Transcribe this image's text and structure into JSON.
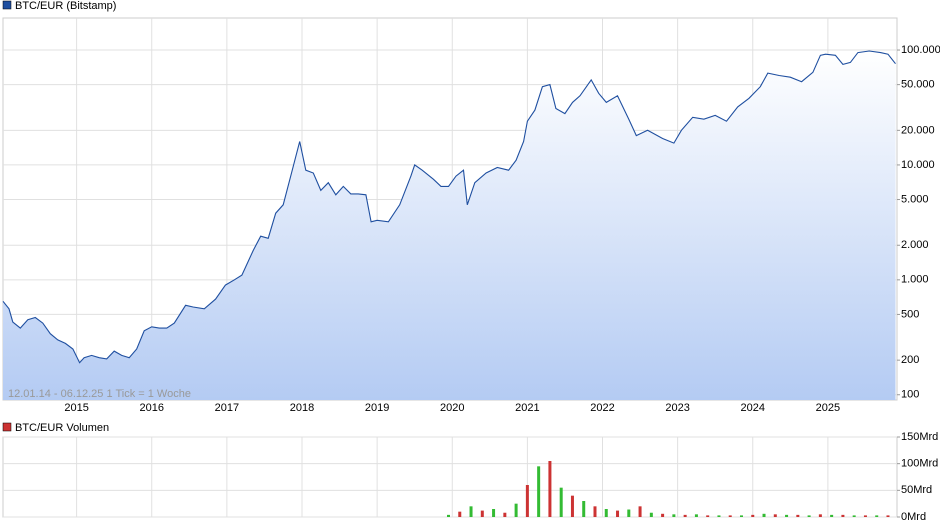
{
  "chart_data": [
    {
      "type": "line",
      "title": "BTC/EUR (Bitstamp)",
      "annotation": "12.01.14 - 06.12.25   1 Tick = 1 Woche",
      "color": "#1f4fa0",
      "log_scale": true,
      "grid": true,
      "xlim": [
        2014.02,
        2025.92
      ],
      "xticks": [
        2015,
        2016,
        2017,
        2018,
        2019,
        2020,
        2021,
        2022,
        2023,
        2024,
        2025
      ],
      "ylim": [
        90,
        190000
      ],
      "yticks": [
        100,
        200,
        500,
        {
          "value": 1000,
          "label": "1.000"
        },
        {
          "value": 2000,
          "label": "2.000"
        },
        {
          "value": 5000,
          "label": "5.000"
        },
        {
          "value": 10000,
          "label": "10.000"
        },
        {
          "value": 20000,
          "label": "20.000"
        },
        {
          "value": 50000,
          "label": "50.000"
        },
        {
          "value": 100000,
          "label": "100.000"
        }
      ],
      "x": [
        2014.02,
        2014.1,
        2014.15,
        2014.25,
        2014.35,
        2014.45,
        2014.55,
        2014.65,
        2014.75,
        2014.85,
        2014.95,
        2015.04,
        2015.1,
        2015.2,
        2015.3,
        2015.4,
        2015.5,
        2015.6,
        2015.7,
        2015.8,
        2015.9,
        2016.0,
        2016.1,
        2016.2,
        2016.3,
        2016.45,
        2016.55,
        2016.7,
        2016.85,
        2016.98,
        2017.1,
        2017.2,
        2017.35,
        2017.45,
        2017.55,
        2017.65,
        2017.75,
        2017.85,
        2017.97,
        2018.05,
        2018.15,
        2018.25,
        2018.35,
        2018.45,
        2018.55,
        2018.65,
        2018.75,
        2018.85,
        2018.92,
        2019.0,
        2019.15,
        2019.3,
        2019.45,
        2019.5,
        2019.6,
        2019.75,
        2019.85,
        2019.95,
        2020.05,
        2020.15,
        2020.2,
        2020.3,
        2020.45,
        2020.6,
        2020.75,
        2020.85,
        2020.95,
        2021.0,
        2021.1,
        2021.2,
        2021.3,
        2021.38,
        2021.5,
        2021.6,
        2021.7,
        2021.85,
        2021.95,
        2022.05,
        2022.2,
        2022.35,
        2022.45,
        2022.6,
        2022.8,
        2022.95,
        2023.05,
        2023.2,
        2023.35,
        2023.5,
        2023.65,
        2023.8,
        2023.95,
        2024.1,
        2024.2,
        2024.35,
        2024.5,
        2024.65,
        2024.8,
        2024.9,
        2024.97,
        2025.1,
        2025.2,
        2025.3,
        2025.4,
        2025.55,
        2025.7,
        2025.8,
        2025.9
      ],
      "values": [
        650,
        560,
        430,
        380,
        450,
        470,
        420,
        340,
        300,
        280,
        250,
        190,
        210,
        220,
        210,
        205,
        240,
        220,
        210,
        250,
        360,
        390,
        380,
        380,
        420,
        600,
        580,
        560,
        680,
        900,
        1000,
        1100,
        1800,
        2400,
        2300,
        3800,
        4500,
        8000,
        16000,
        9000,
        8500,
        6000,
        7000,
        5500,
        6500,
        5600,
        5600,
        5500,
        3200,
        3300,
        3200,
        4500,
        8000,
        10000,
        9000,
        7500,
        6500,
        6500,
        8000,
        9000,
        4500,
        7000,
        8500,
        9500,
        9000,
        11000,
        16000,
        24000,
        30000,
        48000,
        50000,
        31000,
        28000,
        35000,
        40000,
        55000,
        42000,
        35000,
        40000,
        25000,
        18000,
        20000,
        17000,
        15500,
        20000,
        26000,
        25000,
        27000,
        24000,
        32000,
        38000,
        48000,
        63000,
        60000,
        58000,
        53000,
        64000,
        90000,
        92000,
        90000,
        75000,
        78000,
        95000,
        98000,
        95000,
        92000,
        76000
      ]
    },
    {
      "type": "bar",
      "title": "BTC/EUR Volumen",
      "color": "#cc3333",
      "grid": true,
      "xlim": [
        2014.02,
        2025.92
      ],
      "xticks": [
        2015,
        2016,
        2017,
        2018,
        2019,
        2020,
        2021,
        2022,
        2023,
        2024,
        2025
      ],
      "ylim": [
        0,
        150
      ],
      "yticks": [
        {
          "value": 0,
          "label": "0Mrd"
        },
        {
          "value": 50,
          "label": "50Mrd"
        },
        {
          "value": 100,
          "label": "100Mrd"
        },
        {
          "value": 150,
          "label": "150Mrd"
        }
      ],
      "x": [
        2019.95,
        2020.1,
        2020.25,
        2020.4,
        2020.55,
        2020.7,
        2020.85,
        2021.0,
        2021.15,
        2021.3,
        2021.45,
        2021.6,
        2021.75,
        2021.9,
        2022.05,
        2022.2,
        2022.35,
        2022.5,
        2022.65,
        2022.8,
        2022.95,
        2023.1,
        2023.25,
        2023.4,
        2023.55,
        2023.7,
        2023.85,
        2024.0,
        2024.15,
        2024.3,
        2024.45,
        2024.6,
        2024.75,
        2024.9,
        2025.05,
        2025.2,
        2025.35,
        2025.5,
        2025.65,
        2025.8
      ],
      "values": [
        4,
        10,
        20,
        12,
        15,
        8,
        25,
        60,
        95,
        105,
        55,
        40,
        30,
        20,
        15,
        12,
        14,
        20,
        8,
        6,
        5,
        4,
        5,
        3,
        3,
        3,
        3,
        4,
        6,
        5,
        4,
        4,
        3,
        5,
        4,
        4,
        3,
        3,
        3,
        3
      ],
      "colors": [
        "#33bb33",
        "#cc3333",
        "#33bb33",
        "#cc3333",
        "#33bb33",
        "#cc3333",
        "#33bb33",
        "#cc3333",
        "#33bb33",
        "#cc3333",
        "#33bb33",
        "#cc3333",
        "#33bb33",
        "#cc3333",
        "#33bb33",
        "#cc3333",
        "#33bb33",
        "#cc3333",
        "#33bb33",
        "#cc3333",
        "#33bb33",
        "#cc3333",
        "#33bb33",
        "#cc3333",
        "#33bb33",
        "#cc3333",
        "#33bb33",
        "#cc3333",
        "#33bb33",
        "#cc3333",
        "#33bb33",
        "#cc3333",
        "#33bb33",
        "#cc3333",
        "#33bb33",
        "#cc3333",
        "#33bb33",
        "#cc3333",
        "#33bb33",
        "#cc3333"
      ]
    }
  ]
}
